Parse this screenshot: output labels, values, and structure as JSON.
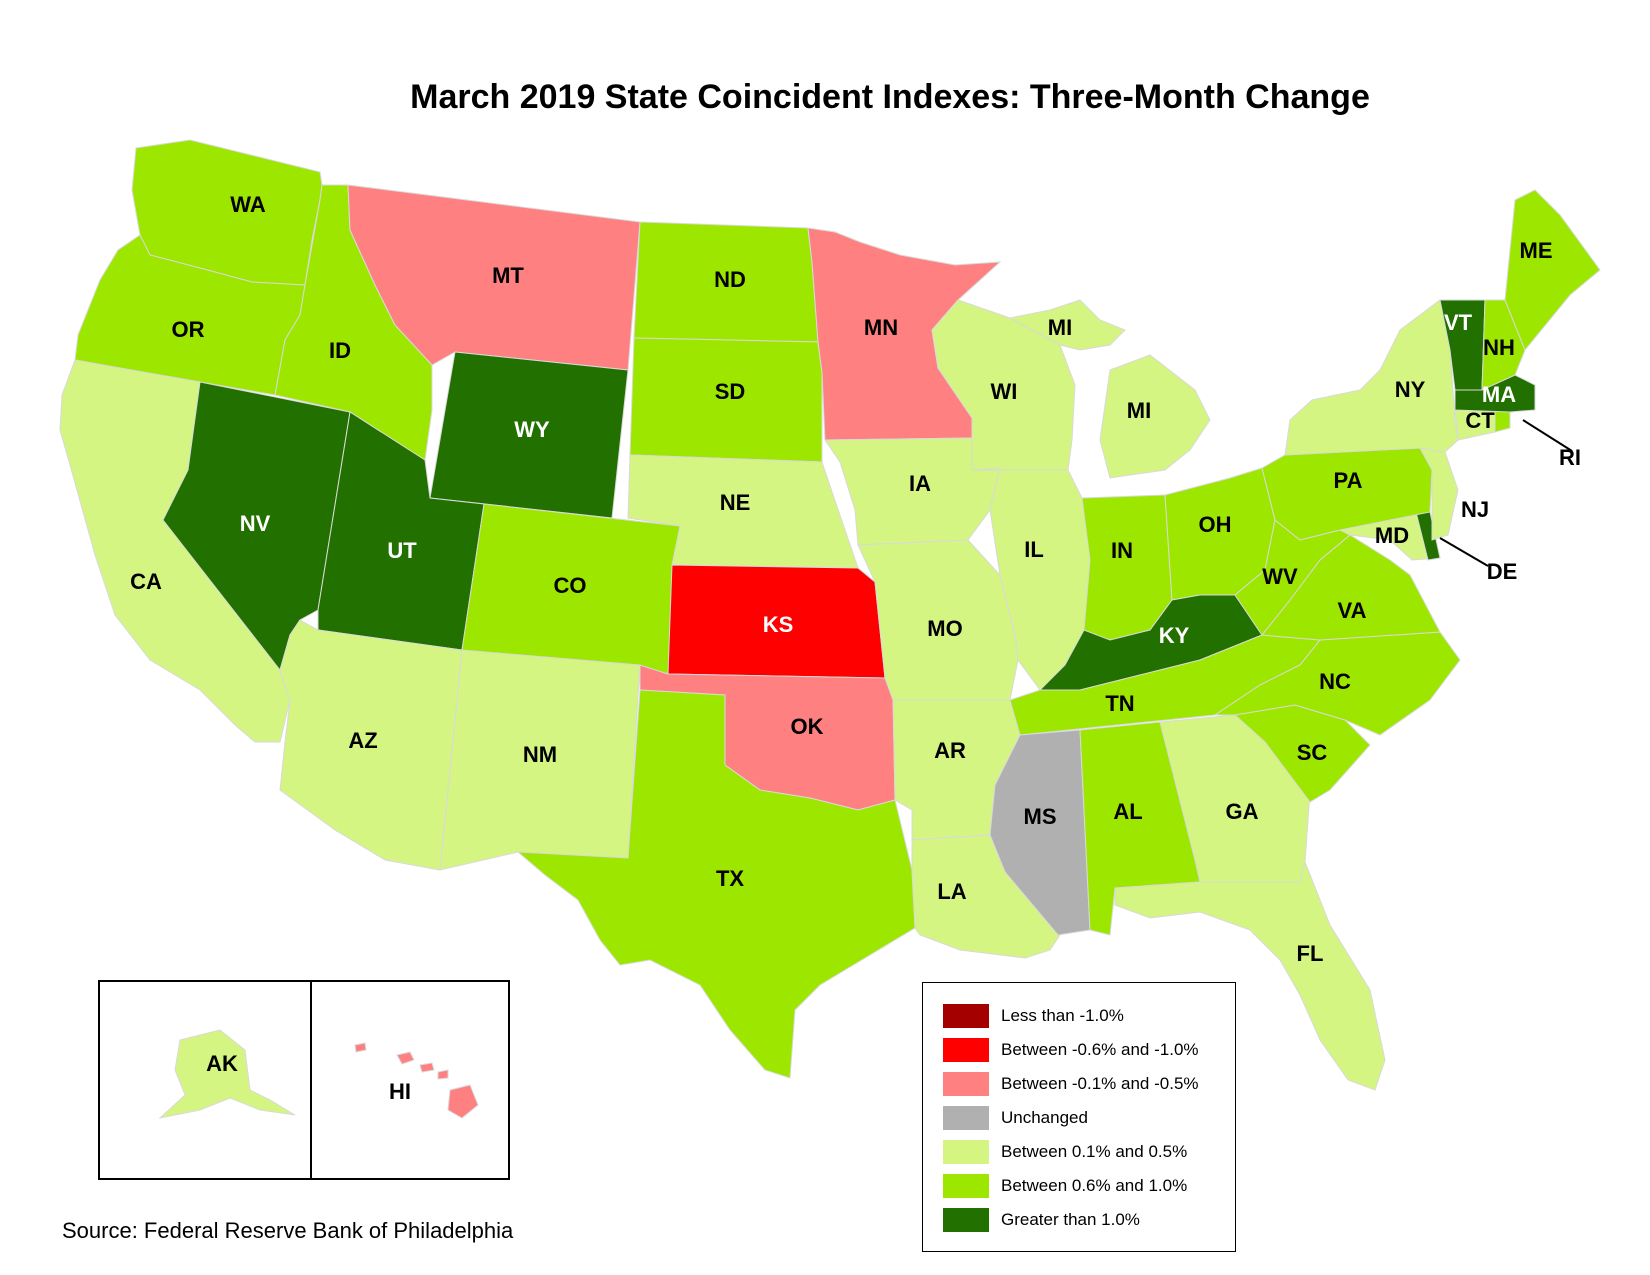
{
  "title": "March 2019 State Coincident Indexes: Three-Month Change",
  "source": "Source: Federal Reserve Bank of Philadelphia",
  "colors": {
    "lt_neg1": "#a50000",
    "neg06_neg10": "#ff0000",
    "neg01_neg05": "#ff8080",
    "unchanged": "#b0b0b0",
    "pos01_05": "#d4f582",
    "pos06_10": "#9de600",
    "gt_pos1": "#217000"
  },
  "legend": [
    {
      "label": "Less than -1.0%",
      "category": "lt_neg1"
    },
    {
      "label": "Between -0.6% and -1.0%",
      "category": "neg06_neg10"
    },
    {
      "label": "Between -0.1% and -0.5%",
      "category": "neg01_neg05"
    },
    {
      "label": "Unchanged",
      "category": "unchanged"
    },
    {
      "label": "Between 0.1% and 0.5%",
      "category": "pos01_05"
    },
    {
      "label": "Between 0.6% and 1.0%",
      "category": "pos06_10"
    },
    {
      "label": "Greater than 1.0%",
      "category": "gt_pos1"
    }
  ],
  "states": [
    {
      "abbr": "WA",
      "category": "pos06_10"
    },
    {
      "abbr": "OR",
      "category": "pos06_10"
    },
    {
      "abbr": "CA",
      "category": "pos01_05"
    },
    {
      "abbr": "NV",
      "category": "gt_pos1"
    },
    {
      "abbr": "ID",
      "category": "pos06_10"
    },
    {
      "abbr": "MT",
      "category": "neg01_neg05"
    },
    {
      "abbr": "WY",
      "category": "gt_pos1"
    },
    {
      "abbr": "UT",
      "category": "gt_pos1"
    },
    {
      "abbr": "AZ",
      "category": "pos01_05"
    },
    {
      "abbr": "CO",
      "category": "pos06_10"
    },
    {
      "abbr": "NM",
      "category": "pos01_05"
    },
    {
      "abbr": "ND",
      "category": "pos06_10"
    },
    {
      "abbr": "SD",
      "category": "pos06_10"
    },
    {
      "abbr": "NE",
      "category": "pos01_05"
    },
    {
      "abbr": "KS",
      "category": "neg06_neg10"
    },
    {
      "abbr": "OK",
      "category": "neg01_neg05"
    },
    {
      "abbr": "TX",
      "category": "pos06_10"
    },
    {
      "abbr": "MN",
      "category": "neg01_neg05"
    },
    {
      "abbr": "IA",
      "category": "pos01_05"
    },
    {
      "abbr": "MO",
      "category": "pos01_05"
    },
    {
      "abbr": "AR",
      "category": "pos01_05"
    },
    {
      "abbr": "LA",
      "category": "pos01_05"
    },
    {
      "abbr": "WI",
      "category": "pos01_05"
    },
    {
      "abbr": "IL",
      "category": "pos01_05"
    },
    {
      "abbr": "MI",
      "category": "pos01_05"
    },
    {
      "abbr": "IN",
      "category": "pos06_10"
    },
    {
      "abbr": "OH",
      "category": "pos06_10"
    },
    {
      "abbr": "KY",
      "category": "gt_pos1"
    },
    {
      "abbr": "TN",
      "category": "pos06_10"
    },
    {
      "abbr": "MS",
      "category": "unchanged"
    },
    {
      "abbr": "AL",
      "category": "pos06_10"
    },
    {
      "abbr": "GA",
      "category": "pos01_05"
    },
    {
      "abbr": "FL",
      "category": "pos01_05"
    },
    {
      "abbr": "SC",
      "category": "pos06_10"
    },
    {
      "abbr": "NC",
      "category": "pos06_10"
    },
    {
      "abbr": "VA",
      "category": "pos06_10"
    },
    {
      "abbr": "WV",
      "category": "pos06_10"
    },
    {
      "abbr": "MD",
      "category": "pos01_05"
    },
    {
      "abbr": "DE",
      "category": "gt_pos1"
    },
    {
      "abbr": "PA",
      "category": "pos06_10"
    },
    {
      "abbr": "NJ",
      "category": "pos01_05"
    },
    {
      "abbr": "NY",
      "category": "pos01_05"
    },
    {
      "abbr": "CT",
      "category": "pos01_05"
    },
    {
      "abbr": "RI",
      "category": "pos06_10"
    },
    {
      "abbr": "MA",
      "category": "gt_pos1"
    },
    {
      "abbr": "VT",
      "category": "gt_pos1"
    },
    {
      "abbr": "NH",
      "category": "pos06_10"
    },
    {
      "abbr": "ME",
      "category": "pos06_10"
    },
    {
      "abbr": "AK",
      "category": "pos01_05"
    },
    {
      "abbr": "HI",
      "category": "neg01_neg05"
    }
  ]
}
